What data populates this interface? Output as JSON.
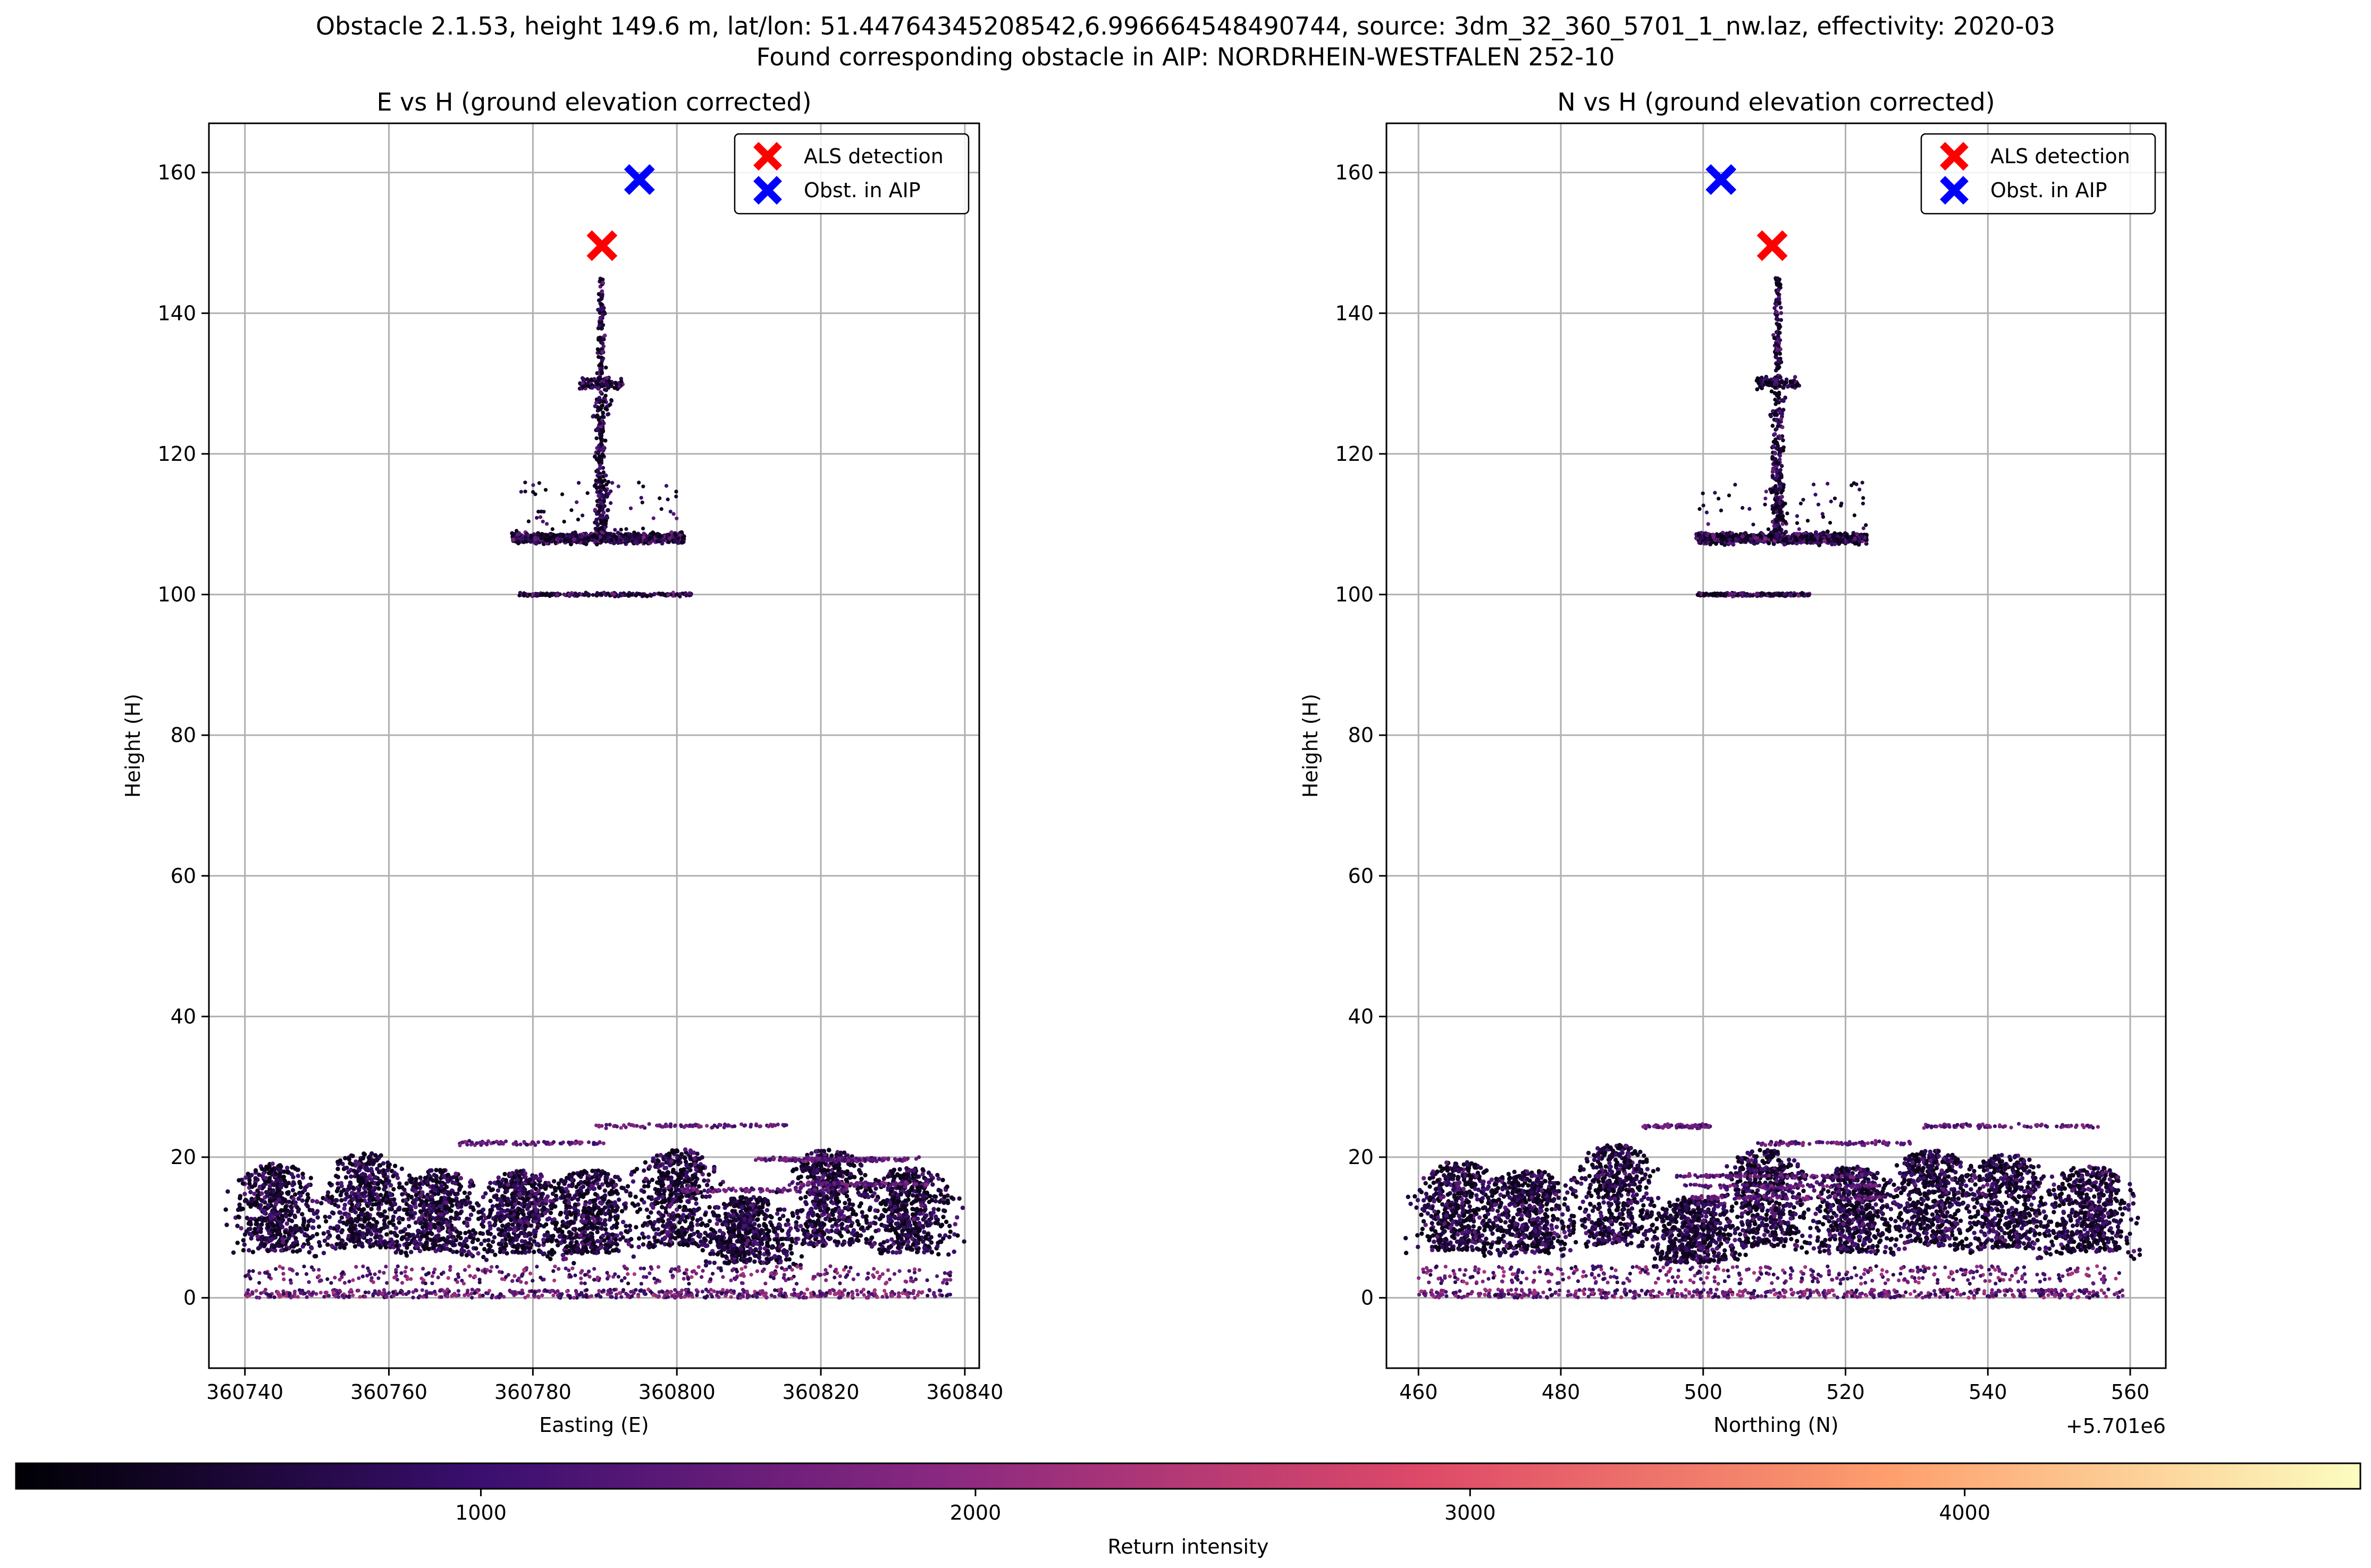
{
  "figure": {
    "suptitle_line1": "Obstacle 2.1.53, height 149.6 m, lat/lon: 51.44764345208542,6.996664548490744, source: 3dm_32_360_5701_1_nw.laz, effectivity: 2020-03",
    "suptitle_line2": "Found corresponding obstacle in AIP: NORDRHEIN-WESTFALEN 252-10"
  },
  "legend": {
    "items": [
      {
        "label": "ALS detection",
        "color": "#ff0000",
        "marker": "x-marker"
      },
      {
        "label": "Obst. in AIP",
        "color": "#0000ff",
        "marker": "x-marker"
      }
    ]
  },
  "colorbar": {
    "label": "Return intensity",
    "ticks": [
      1000,
      2000,
      3000,
      4000
    ],
    "range": [
      60,
      4800
    ],
    "colormap": "magma",
    "stops": [
      "#000004",
      "#3b0f70",
      "#8c2981",
      "#de4968",
      "#fe9f6d",
      "#fcfdbf"
    ]
  },
  "chart_data": [
    {
      "type": "scatter",
      "title": "E vs H (ground elevation corrected)",
      "xlabel": "Easting (E)",
      "ylabel": "Height (H)",
      "xlim": [
        360735,
        360842
      ],
      "ylim": [
        -10,
        167
      ],
      "xticks": [
        360740,
        360760,
        360780,
        360800,
        360820,
        360840
      ],
      "yticks": [
        0,
        20,
        40,
        60,
        80,
        100,
        120,
        140,
        160
      ],
      "grid": true,
      "legend_position": "top-right",
      "offset_label": "",
      "markers": [
        {
          "name": "ALS detection",
          "x": 360789.6,
          "y": 149.6,
          "color": "#ff0000"
        },
        {
          "name": "Obst. in AIP",
          "x": 360794.8,
          "y": 159.0,
          "color": "#0000ff"
        }
      ],
      "point_cloud": {
        "tower_x": [
          360787,
          360792
        ],
        "tower_top": 145,
        "platform_upper": {
          "x": [
            360777,
            360801
          ],
          "y": 108
        },
        "platform_lower": {
          "x": [
            360778,
            360802
          ],
          "y": 100
        },
        "vegetation_x": [
          360740,
          360838
        ],
        "vegetation_y": [
          0,
          24
        ],
        "intensity_range": [
          200,
          2400
        ]
      }
    },
    {
      "type": "scatter",
      "title": "N vs H (ground elevation corrected)",
      "xlabel": "Northing (N)",
      "ylabel": "Height (H)",
      "xlim": [
        455.5,
        565
      ],
      "ylim": [
        -10,
        167
      ],
      "xticks": [
        460,
        480,
        500,
        520,
        540,
        560
      ],
      "yticks": [
        0,
        20,
        40,
        60,
        80,
        100,
        120,
        140,
        160
      ],
      "grid": true,
      "legend_position": "top-right",
      "offset_label": "+5.701e6",
      "markers": [
        {
          "name": "ALS detection",
          "x": 509.7,
          "y": 149.6,
          "color": "#ff0000"
        },
        {
          "name": "Obst. in AIP",
          "x": 502.5,
          "y": 159.0,
          "color": "#0000ff"
        }
      ],
      "point_cloud": {
        "tower_x": [
          508,
          513
        ],
        "tower_top": 145,
        "platform_upper": {
          "x": [
            499,
            523
          ],
          "y": 108
        },
        "platform_lower": {
          "x": [
            499,
            515
          ],
          "y": 100
        },
        "vegetation_x": [
          460,
          559
        ],
        "vegetation_y": [
          0,
          25
        ],
        "intensity_range": [
          200,
          2400
        ]
      }
    }
  ]
}
